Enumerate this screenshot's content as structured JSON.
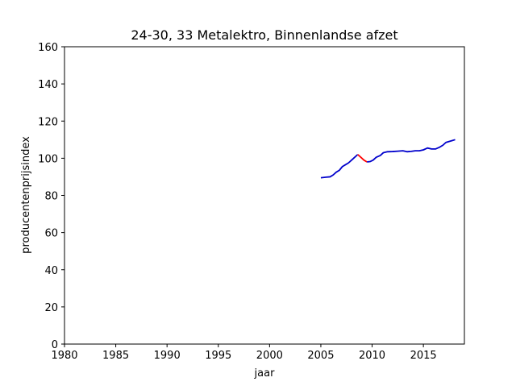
{
  "chart_data": {
    "type": "line",
    "title": "24-30, 33 Metalektro, Binnenlandse afzet",
    "xlabel": "jaar",
    "ylabel": "producentenprijsindex",
    "xlim": [
      1980,
      2019
    ],
    "ylim": [
      0,
      160
    ],
    "xticks": [
      "1980",
      "1985",
      "1990",
      "1995",
      "2000",
      "2005",
      "2010",
      "2015"
    ],
    "yticks": [
      "0",
      "20",
      "40",
      "60",
      "80",
      "100",
      "120",
      "140",
      "160"
    ],
    "grid": false,
    "colors": {
      "main": "#0000cc",
      "highlight": "#ff0000",
      "frame": "#000000"
    },
    "series": [
      {
        "color": "#0000cc",
        "points": [
          [
            2005.0,
            89.5
          ],
          [
            2005.5,
            89.8
          ],
          [
            2005.9,
            90.0
          ],
          [
            2006.2,
            91.0
          ],
          [
            2006.5,
            92.5
          ],
          [
            2006.8,
            93.5
          ],
          [
            2007.1,
            95.5
          ],
          [
            2007.4,
            96.5
          ],
          [
            2007.7,
            97.5
          ],
          [
            2008.0,
            99.0
          ],
          [
            2008.3,
            100.5
          ],
          [
            2008.6,
            102.0
          ]
        ]
      },
      {
        "color": "#ff0000",
        "points": [
          [
            2008.6,
            102.0
          ],
          [
            2008.9,
            100.5
          ],
          [
            2009.2,
            99.0
          ],
          [
            2009.5,
            98.0
          ]
        ]
      },
      {
        "color": "#0000cc",
        "points": [
          [
            2009.5,
            98.0
          ],
          [
            2009.8,
            98.2
          ],
          [
            2010.1,
            99.0
          ],
          [
            2010.4,
            100.5
          ],
          [
            2010.8,
            101.5
          ],
          [
            2011.1,
            103.0
          ],
          [
            2011.5,
            103.5
          ],
          [
            2012.0,
            103.6
          ],
          [
            2012.5,
            103.8
          ],
          [
            2013.0,
            104.0
          ],
          [
            2013.4,
            103.5
          ],
          [
            2013.8,
            103.7
          ],
          [
            2014.2,
            104.0
          ],
          [
            2014.6,
            104.0
          ],
          [
            2015.0,
            104.5
          ],
          [
            2015.4,
            105.5
          ],
          [
            2015.8,
            105.0
          ],
          [
            2016.2,
            105.0
          ],
          [
            2016.6,
            106.0
          ],
          [
            2016.9,
            107.0
          ],
          [
            2017.2,
            108.5
          ],
          [
            2017.5,
            109.0
          ],
          [
            2017.8,
            109.5
          ],
          [
            2018.1,
            110.0
          ]
        ]
      }
    ]
  }
}
